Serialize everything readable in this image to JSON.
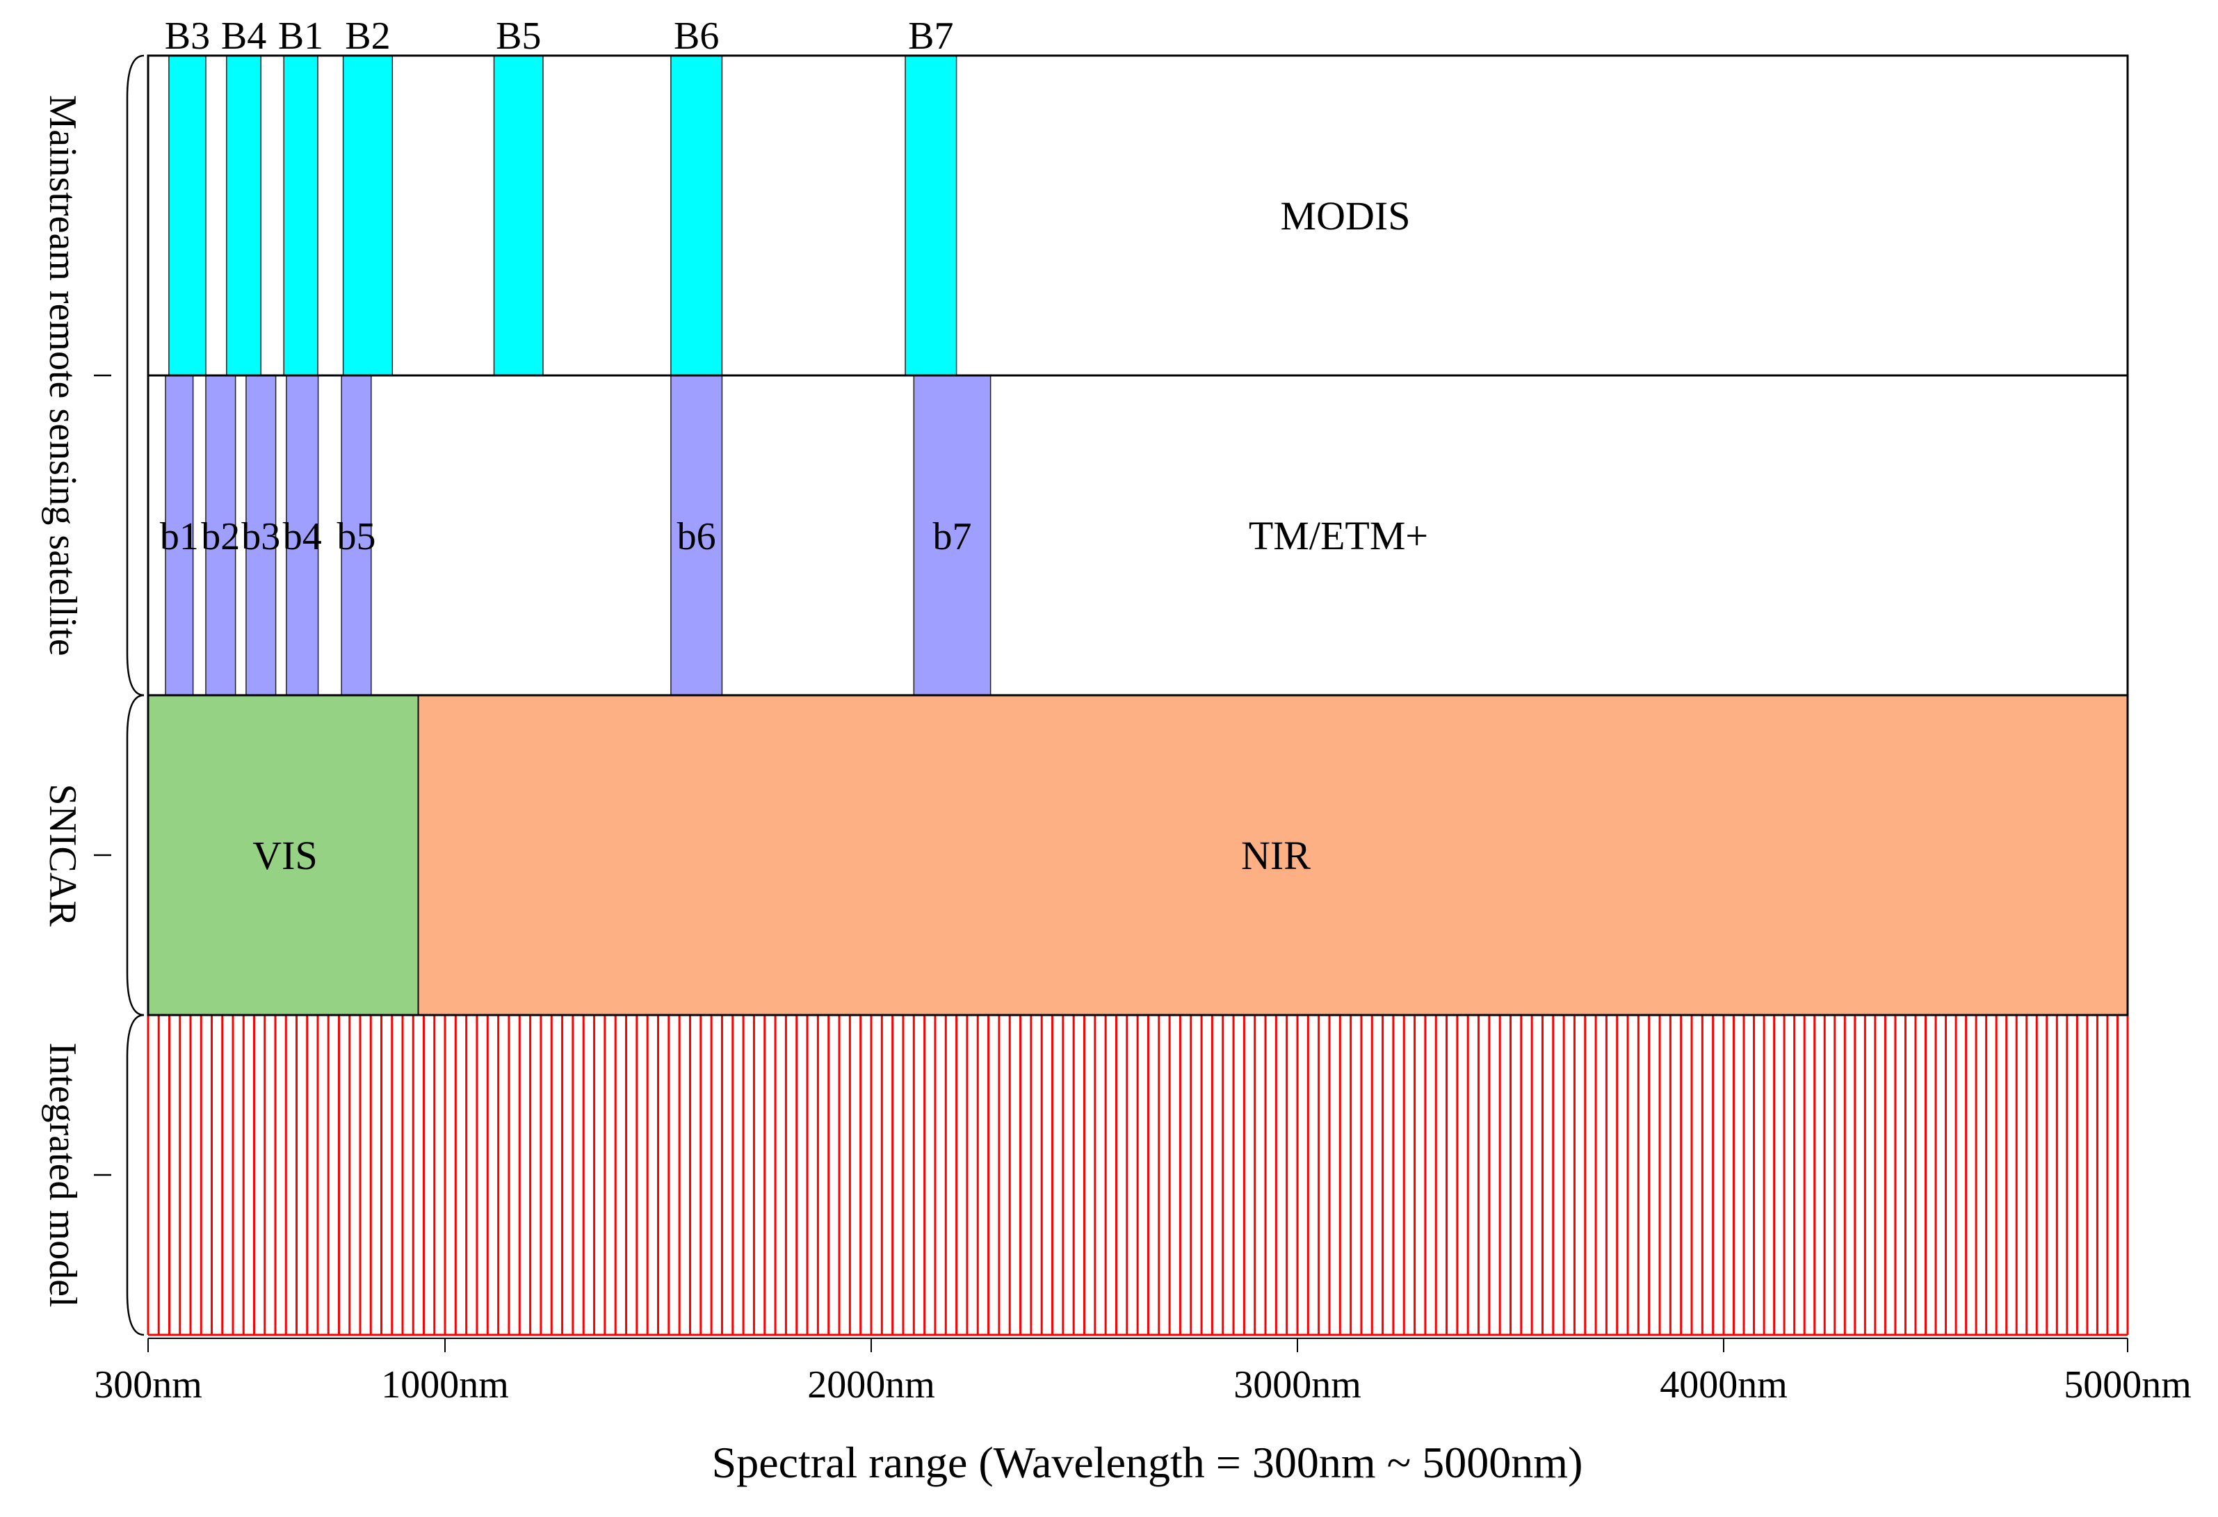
{
  "chart_data": {
    "type": "spectral-band-diagram",
    "xlabel": "Spectral range (Wavelength = 300nm ~ 5000nm)",
    "x_ticks": [
      {
        "value": 300,
        "label": "300nm"
      },
      {
        "value": 1000,
        "label": "1000nm"
      },
      {
        "value": 2000,
        "label": "2000nm"
      },
      {
        "value": 3000,
        "label": "3000nm"
      },
      {
        "value": 4000,
        "label": "4000nm"
      },
      {
        "value": 5000,
        "label": "5000nm"
      }
    ],
    "group_labels": [
      {
        "label": "Mainstream remote sensing satellite",
        "rows": [
          "MODIS",
          "TM/ETM+"
        ]
      },
      {
        "label": "SNICAR",
        "rows": [
          "SNICAR"
        ]
      },
      {
        "label": "Integrated model",
        "rows": [
          "Integrated model"
        ]
      }
    ],
    "rows": [
      {
        "id": "modis",
        "name": "MODIS",
        "color": "#00FFFF",
        "label_position": "top",
        "bands": [
          {
            "label": "B3",
            "start": 349,
            "end": 436
          },
          {
            "label": "B4",
            "start": 485,
            "end": 566
          },
          {
            "label": "B1",
            "start": 620,
            "end": 700
          },
          {
            "label": "B2",
            "start": 760,
            "end": 876
          },
          {
            "label": "B5",
            "start": 1115,
            "end": 1230
          },
          {
            "label": "B6",
            "start": 1530,
            "end": 1650
          },
          {
            "label": "B7",
            "start": 2080,
            "end": 2200
          }
        ]
      },
      {
        "id": "tm",
        "name": "TM/ETM+",
        "color": "#9F9FFF",
        "label_position": "middle",
        "bands": [
          {
            "label": "b1",
            "start": 341,
            "end": 406
          },
          {
            "label": "b2",
            "start": 436,
            "end": 506
          },
          {
            "label": "b3",
            "start": 531,
            "end": 601
          },
          {
            "label": "b4",
            "start": 626,
            "end": 701
          },
          {
            "label": "b5",
            "start": 756,
            "end": 826
          },
          {
            "label": "b6",
            "start": 1530,
            "end": 1650
          },
          {
            "label": "b7",
            "start": 2100,
            "end": 2280
          }
        ]
      },
      {
        "id": "snicar",
        "name": "SNICAR",
        "regions": [
          {
            "label": "VIS",
            "start": 300,
            "end": 937,
            "color": "#95D283"
          },
          {
            "label": "NIR",
            "start": 937,
            "end": 5000,
            "color": "#FDB083"
          }
        ]
      },
      {
        "id": "integrated",
        "name": "Integrated model",
        "line_color": "#FF0000",
        "lines_start": 300,
        "lines_end": 5000,
        "line_step": 25
      }
    ],
    "grid": false
  }
}
